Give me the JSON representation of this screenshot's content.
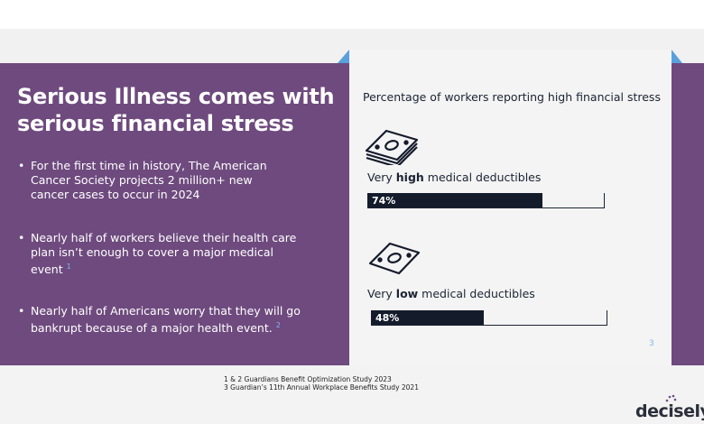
{
  "slide": {
    "title_line1": "Serious Illness comes with",
    "title_line2": "serious financial stress",
    "bullets": [
      {
        "dot": "•",
        "text": "For the first time in history, The American Cancer Society projects 2 million+ new cancer cases to occur in 2024",
        "ref": ""
      },
      {
        "dot": "•",
        "text": "Nearly half of workers believe their health care plan isn’t enough to cover a major medical event",
        "ref": "1"
      },
      {
        "dot": "•",
        "text": "Nearly half of Americans worry that they will go bankrupt because of a major health event.",
        "ref": "2"
      }
    ],
    "slide_number": "3"
  },
  "chart_data": {
    "type": "bar",
    "title": "Percentage of workers reporting high financial stress",
    "categories": [
      {
        "prefix": "Very ",
        "emphasis": "high",
        "suffix": " medical deductibles"
      },
      {
        "prefix": "Very ",
        "emphasis": "low",
        "suffix": " medical deductibles"
      }
    ],
    "values": [
      74,
      48
    ],
    "value_labels": [
      "74%",
      "48%"
    ],
    "ylim": [
      0,
      100
    ],
    "bar_color": "#141b2b",
    "icons": [
      "money-stack-icon",
      "money-bill-icon"
    ]
  },
  "footnotes": [
    "1 & 2 Guardians Benefit Optimization Study 2023",
    "3 Guardian’s 11th Annual Workplace Benefits Study 2021"
  ],
  "brand": {
    "logo_text": "decisely",
    "accent": "#6e4a7e"
  }
}
